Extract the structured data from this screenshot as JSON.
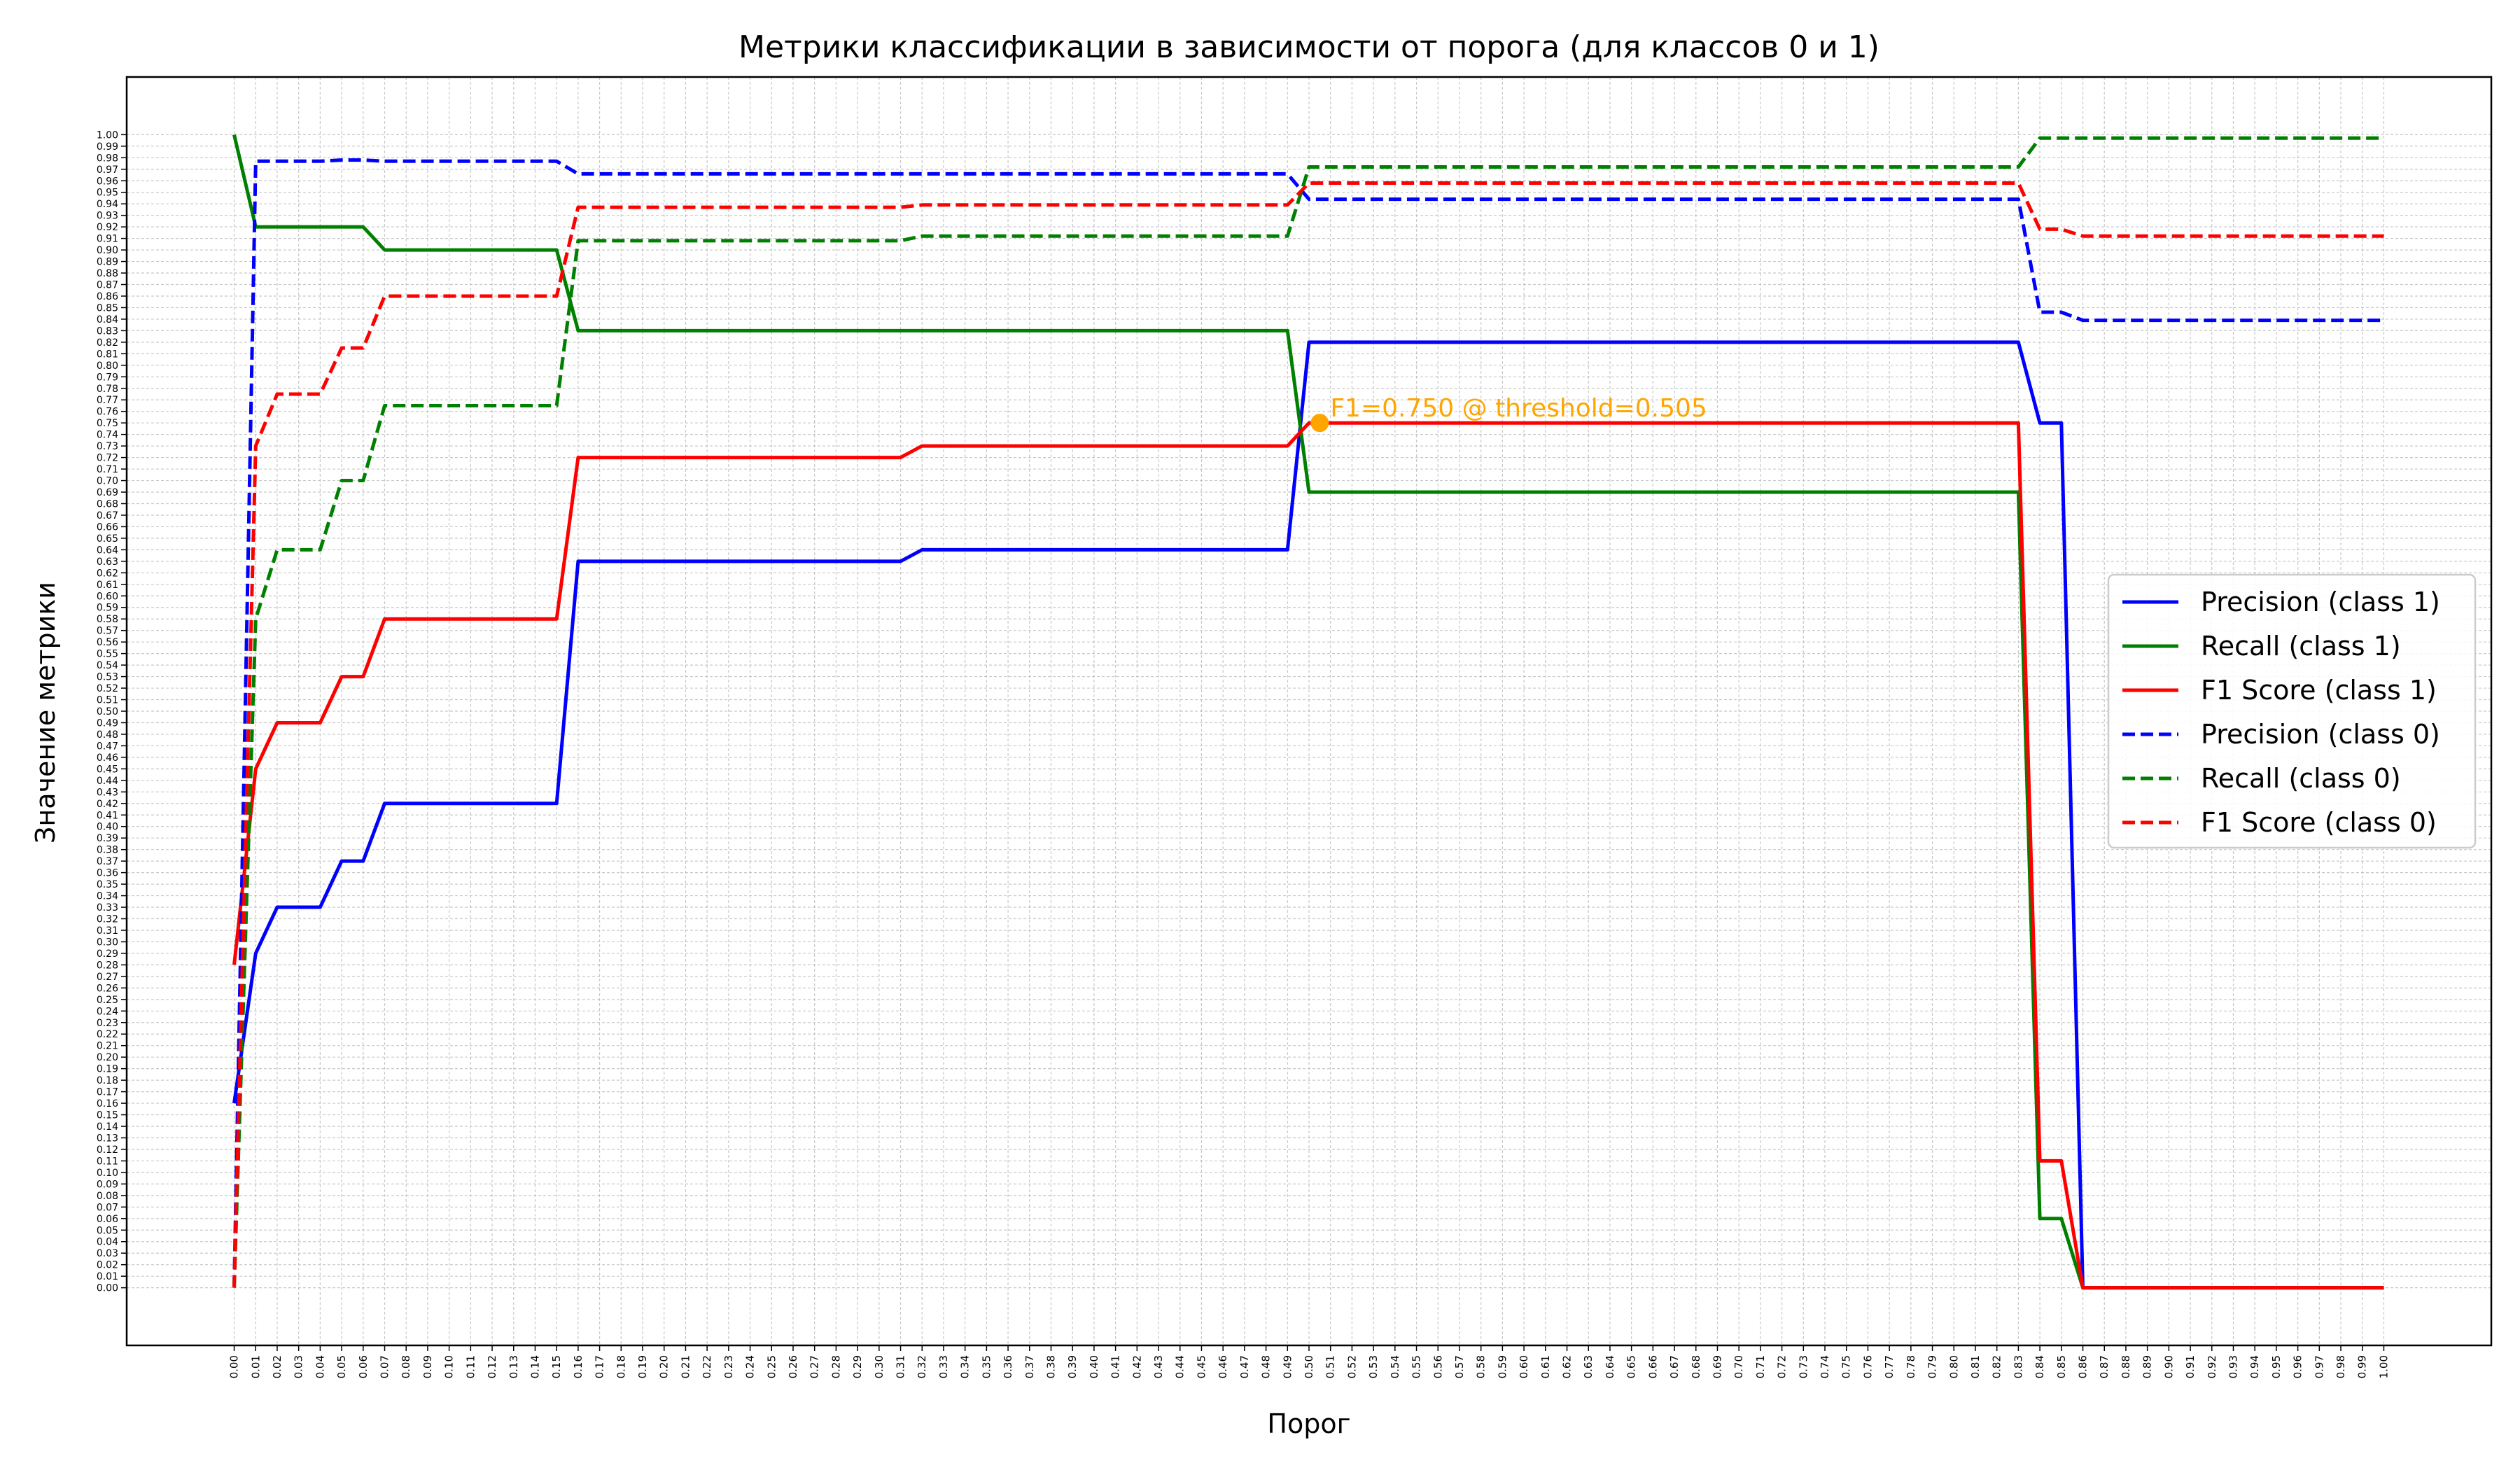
{
  "chart_data": {
    "type": "line",
    "title": "Метрики классификации в зависимости от порога (для классов 0 и 1)",
    "xlabel": "Порог",
    "ylabel": "Значение метрики",
    "xlim": [
      -0.05,
      1.05
    ],
    "ylim": [
      -0.05,
      1.05
    ],
    "grid": true,
    "legend_position": "center-right",
    "x": [
      0.0,
      0.01,
      0.02,
      0.03,
      0.04,
      0.05,
      0.06,
      0.07,
      0.08,
      0.09,
      0.1,
      0.11,
      0.12,
      0.13,
      0.14,
      0.15,
      0.16,
      0.17,
      0.18,
      0.19,
      0.2,
      0.21,
      0.22,
      0.23,
      0.24,
      0.25,
      0.26,
      0.27,
      0.28,
      0.29,
      0.3,
      0.31,
      0.32,
      0.33,
      0.34,
      0.35,
      0.36,
      0.37,
      0.38,
      0.39,
      0.4,
      0.41,
      0.42,
      0.43,
      0.44,
      0.45,
      0.46,
      0.47,
      0.48,
      0.49,
      0.5,
      0.51,
      0.52,
      0.53,
      0.54,
      0.55,
      0.56,
      0.57,
      0.58,
      0.59,
      0.6,
      0.61,
      0.62,
      0.63,
      0.64,
      0.65,
      0.66,
      0.67,
      0.68,
      0.69,
      0.7,
      0.71,
      0.72,
      0.73,
      0.74,
      0.75,
      0.76,
      0.77,
      0.78,
      0.79,
      0.8,
      0.81,
      0.82,
      0.83,
      0.84,
      0.85,
      0.86,
      0.87,
      0.88,
      0.89,
      0.9,
      0.91,
      0.92,
      0.93,
      0.94,
      0.95,
      0.96,
      0.97,
      0.98,
      0.99,
      1.0
    ],
    "series": [
      {
        "name": "Precision (class 1)",
        "color": "#0000ff",
        "dash": "solid",
        "values": [
          0.16,
          0.29,
          0.33,
          0.33,
          0.33,
          0.37,
          0.37,
          0.42,
          0.42,
          0.42,
          0.42,
          0.42,
          0.42,
          0.42,
          0.42,
          0.42,
          0.63,
          0.63,
          0.63,
          0.63,
          0.63,
          0.63,
          0.63,
          0.63,
          0.63,
          0.63,
          0.63,
          0.63,
          0.63,
          0.63,
          0.63,
          0.63,
          0.64,
          0.64,
          0.64,
          0.64,
          0.64,
          0.64,
          0.64,
          0.64,
          0.64,
          0.64,
          0.64,
          0.64,
          0.64,
          0.64,
          0.64,
          0.64,
          0.64,
          0.64,
          0.82,
          0.82,
          0.82,
          0.82,
          0.82,
          0.82,
          0.82,
          0.82,
          0.82,
          0.82,
          0.82,
          0.82,
          0.82,
          0.82,
          0.82,
          0.82,
          0.82,
          0.82,
          0.82,
          0.82,
          0.82,
          0.82,
          0.82,
          0.82,
          0.82,
          0.82,
          0.82,
          0.82,
          0.82,
          0.82,
          0.82,
          0.82,
          0.82,
          0.82,
          0.75,
          0.75,
          0.0,
          0.0,
          0.0,
          0.0,
          0.0,
          0.0,
          0.0,
          0.0,
          0.0,
          0.0,
          0.0,
          0.0,
          0.0,
          0.0,
          0.0
        ]
      },
      {
        "name": "Recall (class 1)",
        "color": "#008000",
        "dash": "solid",
        "values": [
          1.0,
          0.92,
          0.92,
          0.92,
          0.92,
          0.92,
          0.92,
          0.9,
          0.9,
          0.9,
          0.9,
          0.9,
          0.9,
          0.9,
          0.9,
          0.9,
          0.83,
          0.83,
          0.83,
          0.83,
          0.83,
          0.83,
          0.83,
          0.83,
          0.83,
          0.83,
          0.83,
          0.83,
          0.83,
          0.83,
          0.83,
          0.83,
          0.83,
          0.83,
          0.83,
          0.83,
          0.83,
          0.83,
          0.83,
          0.83,
          0.83,
          0.83,
          0.83,
          0.83,
          0.83,
          0.83,
          0.83,
          0.83,
          0.83,
          0.83,
          0.69,
          0.69,
          0.69,
          0.69,
          0.69,
          0.69,
          0.69,
          0.69,
          0.69,
          0.69,
          0.69,
          0.69,
          0.69,
          0.69,
          0.69,
          0.69,
          0.69,
          0.69,
          0.69,
          0.69,
          0.69,
          0.69,
          0.69,
          0.69,
          0.69,
          0.69,
          0.69,
          0.69,
          0.69,
          0.69,
          0.69,
          0.69,
          0.69,
          0.69,
          0.06,
          0.06,
          0.0,
          0.0,
          0.0,
          0.0,
          0.0,
          0.0,
          0.0,
          0.0,
          0.0,
          0.0,
          0.0,
          0.0,
          0.0,
          0.0,
          0.0
        ]
      },
      {
        "name": "F1 Score (class 1)",
        "color": "#ff0000",
        "dash": "solid",
        "values": [
          0.28,
          0.45,
          0.49,
          0.49,
          0.49,
          0.53,
          0.53,
          0.58,
          0.58,
          0.58,
          0.58,
          0.58,
          0.58,
          0.58,
          0.58,
          0.58,
          0.72,
          0.72,
          0.72,
          0.72,
          0.72,
          0.72,
          0.72,
          0.72,
          0.72,
          0.72,
          0.72,
          0.72,
          0.72,
          0.72,
          0.72,
          0.72,
          0.73,
          0.73,
          0.73,
          0.73,
          0.73,
          0.73,
          0.73,
          0.73,
          0.73,
          0.73,
          0.73,
          0.73,
          0.73,
          0.73,
          0.73,
          0.73,
          0.73,
          0.73,
          0.75,
          0.75,
          0.75,
          0.75,
          0.75,
          0.75,
          0.75,
          0.75,
          0.75,
          0.75,
          0.75,
          0.75,
          0.75,
          0.75,
          0.75,
          0.75,
          0.75,
          0.75,
          0.75,
          0.75,
          0.75,
          0.75,
          0.75,
          0.75,
          0.75,
          0.75,
          0.75,
          0.75,
          0.75,
          0.75,
          0.75,
          0.75,
          0.75,
          0.75,
          0.11,
          0.11,
          0.0,
          0.0,
          0.0,
          0.0,
          0.0,
          0.0,
          0.0,
          0.0,
          0.0,
          0.0,
          0.0,
          0.0,
          0.0,
          0.0,
          0.0
        ]
      },
      {
        "name": "Precision (class 0)",
        "color": "#0000ff",
        "dash": "dashed",
        "values": [
          0.0,
          0.977,
          0.977,
          0.977,
          0.977,
          0.978,
          0.978,
          0.977,
          0.977,
          0.977,
          0.977,
          0.977,
          0.977,
          0.977,
          0.977,
          0.977,
          0.966,
          0.966,
          0.966,
          0.966,
          0.966,
          0.966,
          0.966,
          0.966,
          0.966,
          0.966,
          0.966,
          0.966,
          0.966,
          0.966,
          0.966,
          0.966,
          0.966,
          0.966,
          0.966,
          0.966,
          0.966,
          0.966,
          0.966,
          0.966,
          0.966,
          0.966,
          0.966,
          0.966,
          0.966,
          0.966,
          0.966,
          0.966,
          0.966,
          0.966,
          0.944,
          0.944,
          0.944,
          0.944,
          0.944,
          0.944,
          0.944,
          0.944,
          0.944,
          0.944,
          0.944,
          0.944,
          0.944,
          0.944,
          0.944,
          0.944,
          0.944,
          0.944,
          0.944,
          0.944,
          0.944,
          0.944,
          0.944,
          0.944,
          0.944,
          0.944,
          0.944,
          0.944,
          0.944,
          0.944,
          0.944,
          0.944,
          0.944,
          0.944,
          0.846,
          0.846,
          0.839,
          0.839,
          0.839,
          0.839,
          0.839,
          0.839,
          0.839,
          0.839,
          0.839,
          0.839,
          0.839,
          0.839,
          0.839,
          0.839,
          0.839
        ]
      },
      {
        "name": "Recall (class 0)",
        "color": "#008000",
        "dash": "dashed",
        "values": [
          0.0,
          0.58,
          0.64,
          0.64,
          0.64,
          0.7,
          0.7,
          0.765,
          0.765,
          0.765,
          0.765,
          0.765,
          0.765,
          0.765,
          0.765,
          0.765,
          0.908,
          0.908,
          0.908,
          0.908,
          0.908,
          0.908,
          0.908,
          0.908,
          0.908,
          0.908,
          0.908,
          0.908,
          0.908,
          0.908,
          0.908,
          0.908,
          0.912,
          0.912,
          0.912,
          0.912,
          0.912,
          0.912,
          0.912,
          0.912,
          0.912,
          0.912,
          0.912,
          0.912,
          0.912,
          0.912,
          0.912,
          0.912,
          0.912,
          0.912,
          0.972,
          0.972,
          0.972,
          0.972,
          0.972,
          0.972,
          0.972,
          0.972,
          0.972,
          0.972,
          0.972,
          0.972,
          0.972,
          0.972,
          0.972,
          0.972,
          0.972,
          0.972,
          0.972,
          0.972,
          0.972,
          0.972,
          0.972,
          0.972,
          0.972,
          0.972,
          0.972,
          0.972,
          0.972,
          0.972,
          0.972,
          0.972,
          0.972,
          0.972,
          0.997,
          0.997,
          0.997,
          0.997,
          0.997,
          0.997,
          0.997,
          0.997,
          0.997,
          0.997,
          0.997,
          0.997,
          0.997,
          0.997,
          0.997,
          0.997,
          0.997
        ]
      },
      {
        "name": "F1 Score (class 0)",
        "color": "#ff0000",
        "dash": "dashed",
        "values": [
          0.0,
          0.73,
          0.775,
          0.775,
          0.775,
          0.815,
          0.815,
          0.86,
          0.86,
          0.86,
          0.86,
          0.86,
          0.86,
          0.86,
          0.86,
          0.86,
          0.937,
          0.937,
          0.937,
          0.937,
          0.937,
          0.937,
          0.937,
          0.937,
          0.937,
          0.937,
          0.937,
          0.937,
          0.937,
          0.937,
          0.937,
          0.937,
          0.939,
          0.939,
          0.939,
          0.939,
          0.939,
          0.939,
          0.939,
          0.939,
          0.939,
          0.939,
          0.939,
          0.939,
          0.939,
          0.939,
          0.939,
          0.939,
          0.939,
          0.939,
          0.958,
          0.958,
          0.958,
          0.958,
          0.958,
          0.958,
          0.958,
          0.958,
          0.958,
          0.958,
          0.958,
          0.958,
          0.958,
          0.958,
          0.958,
          0.958,
          0.958,
          0.958,
          0.958,
          0.958,
          0.958,
          0.958,
          0.958,
          0.958,
          0.958,
          0.958,
          0.958,
          0.958,
          0.958,
          0.958,
          0.958,
          0.958,
          0.958,
          0.958,
          0.918,
          0.918,
          0.912,
          0.912,
          0.912,
          0.912,
          0.912,
          0.912,
          0.912,
          0.912,
          0.912,
          0.912,
          0.912,
          0.912,
          0.912,
          0.912,
          0.912
        ]
      }
    ],
    "annotations": [
      {
        "text": "F1=0.750 @ threshold=0.505",
        "x": 0.505,
        "y": 0.75,
        "color": "#ffa500"
      }
    ]
  }
}
